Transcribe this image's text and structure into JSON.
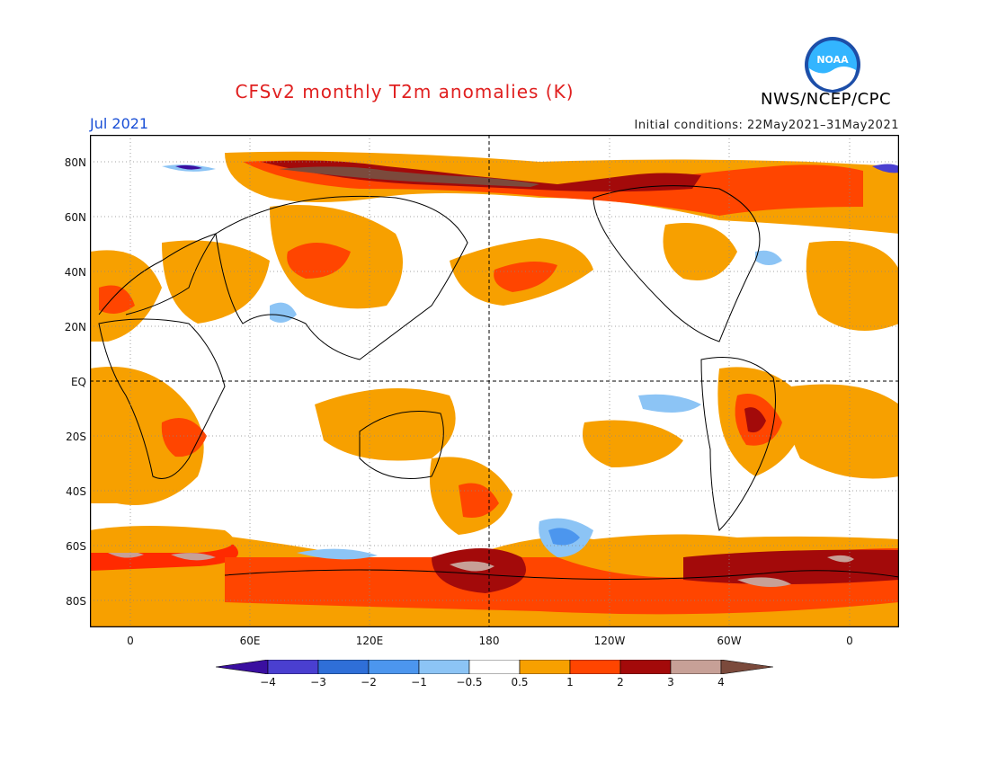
{
  "header": {
    "title": "CFSv2 monthly T2m anomalies (K)",
    "month": "Jul 2021",
    "initial_conditions": "Initial conditions: 22May2021–31May2021",
    "agency": "NWS/NCEP/CPC",
    "logo_text": "NOAA"
  },
  "map": {
    "projection": "equirectangular",
    "lat_labels": [
      "80N",
      "60N",
      "40N",
      "20N",
      "EQ",
      "20S",
      "40S",
      "60S",
      "80S"
    ],
    "lon_labels": [
      "0",
      "60E",
      "120E",
      "180",
      "120W",
      "60W",
      "0"
    ],
    "colors": {
      "minus4": "#3a0fa0",
      "minus3": "#4a3fd0",
      "minus2": "#2f6fd8",
      "minus1": "#4c96ee",
      "minus05": "#8cc4f5",
      "neutral": "#ffffff",
      "plus05": "#f7a000",
      "plus1": "#ff4500",
      "plus2": "#ff2a00",
      "plus3": "#a30a0a",
      "plus4": "#c7a097",
      "plus5": "#7b4a3c"
    }
  },
  "colorbar": {
    "labels": [
      "−4",
      "−3",
      "−2",
      "−1",
      "−0.5",
      "0.5",
      "1",
      "2",
      "3",
      "4"
    ]
  }
}
